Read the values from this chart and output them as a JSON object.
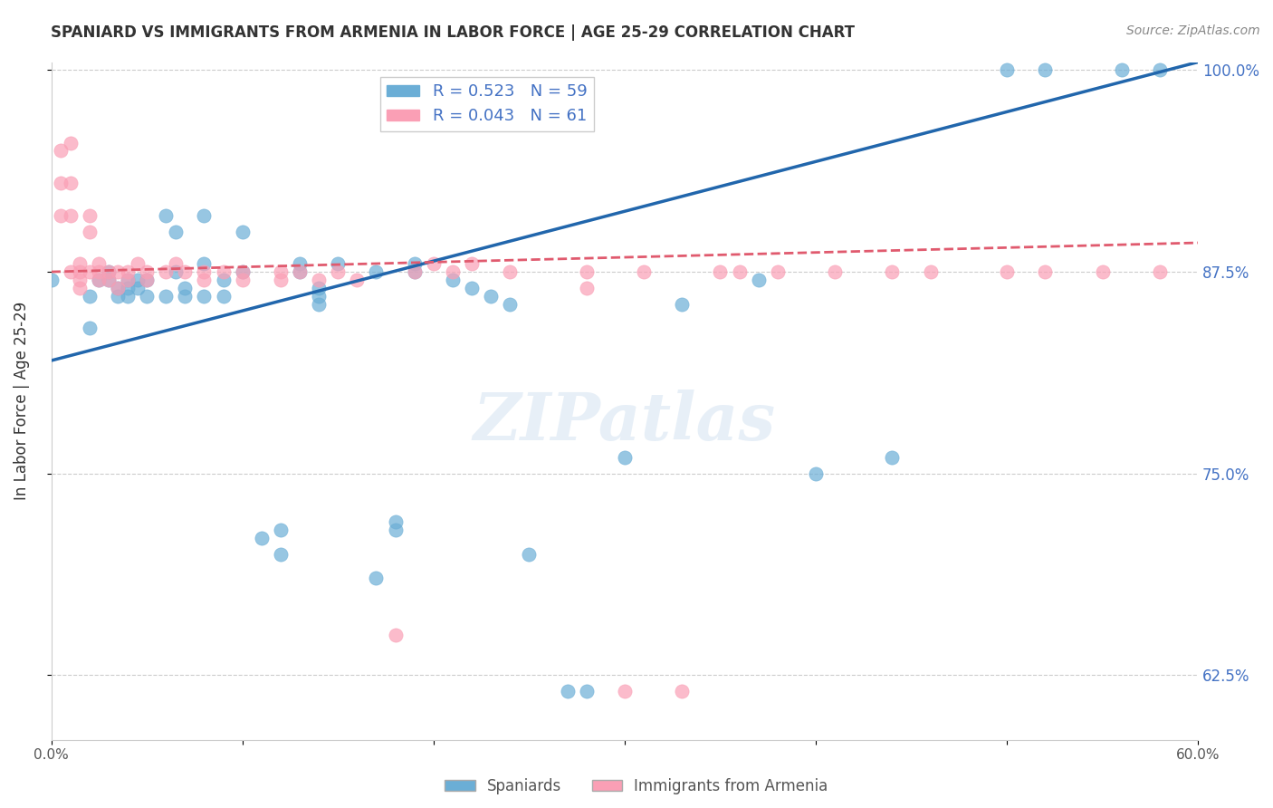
{
  "title": "SPANIARD VS IMMIGRANTS FROM ARMENIA IN LABOR FORCE | AGE 25-29 CORRELATION CHART",
  "source": "Source: ZipAtlas.com",
  "xlabel": "",
  "ylabel": "In Labor Force | Age 25-29",
  "xlim": [
    0.0,
    0.6
  ],
  "ylim": [
    0.585,
    1.005
  ],
  "xticks": [
    0.0,
    0.1,
    0.2,
    0.3,
    0.4,
    0.5,
    0.6
  ],
  "xticklabels": [
    "0.0%",
    "",
    "",
    "",
    "",
    "",
    "60.0%"
  ],
  "yticks": [
    0.625,
    0.75,
    0.875,
    1.0
  ],
  "yticklabels": [
    "62.5%",
    "75.0%",
    "87.5%",
    "100.0%"
  ],
  "blue_color": "#6baed6",
  "pink_color": "#fa9fb5",
  "blue_line_color": "#2166ac",
  "pink_line_color": "#e05a6e",
  "R_blue": 0.523,
  "N_blue": 59,
  "R_pink": 0.043,
  "N_pink": 61,
  "watermark": "ZIPatlas",
  "blue_x": [
    0.0,
    0.02,
    0.02,
    0.025,
    0.03,
    0.03,
    0.035,
    0.035,
    0.04,
    0.04,
    0.04,
    0.045,
    0.045,
    0.05,
    0.05,
    0.06,
    0.06,
    0.065,
    0.065,
    0.07,
    0.07,
    0.08,
    0.08,
    0.08,
    0.09,
    0.09,
    0.1,
    0.1,
    0.11,
    0.12,
    0.12,
    0.13,
    0.13,
    0.14,
    0.14,
    0.14,
    0.15,
    0.17,
    0.17,
    0.18,
    0.18,
    0.19,
    0.19,
    0.21,
    0.22,
    0.23,
    0.24,
    0.25,
    0.27,
    0.28,
    0.3,
    0.33,
    0.37,
    0.4,
    0.44,
    0.5,
    0.52,
    0.56,
    0.58
  ],
  "blue_y": [
    0.87,
    0.86,
    0.84,
    0.87,
    0.875,
    0.87,
    0.865,
    0.86,
    0.87,
    0.865,
    0.86,
    0.87,
    0.865,
    0.87,
    0.86,
    0.91,
    0.86,
    0.9,
    0.875,
    0.865,
    0.86,
    0.91,
    0.88,
    0.86,
    0.87,
    0.86,
    0.9,
    0.875,
    0.71,
    0.715,
    0.7,
    0.88,
    0.875,
    0.865,
    0.86,
    0.855,
    0.88,
    0.875,
    0.685,
    0.72,
    0.715,
    0.88,
    0.875,
    0.87,
    0.865,
    0.86,
    0.855,
    0.7,
    0.615,
    0.615,
    0.76,
    0.855,
    0.87,
    0.75,
    0.76,
    1.0,
    1.0,
    1.0,
    1.0
  ],
  "pink_x": [
    0.005,
    0.005,
    0.005,
    0.01,
    0.01,
    0.01,
    0.01,
    0.015,
    0.015,
    0.015,
    0.015,
    0.02,
    0.02,
    0.02,
    0.025,
    0.025,
    0.025,
    0.03,
    0.03,
    0.035,
    0.035,
    0.04,
    0.04,
    0.045,
    0.05,
    0.05,
    0.06,
    0.065,
    0.07,
    0.08,
    0.08,
    0.09,
    0.1,
    0.1,
    0.12,
    0.12,
    0.13,
    0.14,
    0.15,
    0.16,
    0.18,
    0.19,
    0.2,
    0.21,
    0.22,
    0.24,
    0.28,
    0.28,
    0.3,
    0.31,
    0.33,
    0.35,
    0.36,
    0.38,
    0.41,
    0.44,
    0.46,
    0.5,
    0.52,
    0.55,
    0.58
  ],
  "pink_y": [
    0.95,
    0.93,
    0.91,
    0.875,
    0.955,
    0.93,
    0.91,
    0.88,
    0.875,
    0.87,
    0.865,
    0.91,
    0.9,
    0.875,
    0.88,
    0.875,
    0.87,
    0.875,
    0.87,
    0.875,
    0.865,
    0.875,
    0.87,
    0.88,
    0.875,
    0.87,
    0.875,
    0.88,
    0.875,
    0.875,
    0.87,
    0.875,
    0.875,
    0.87,
    0.875,
    0.87,
    0.875,
    0.87,
    0.875,
    0.87,
    0.65,
    0.875,
    0.88,
    0.875,
    0.88,
    0.875,
    0.875,
    0.865,
    0.615,
    0.875,
    0.615,
    0.875,
    0.875,
    0.875,
    0.875,
    0.875,
    0.875,
    0.875,
    0.875,
    0.875,
    0.875
  ]
}
